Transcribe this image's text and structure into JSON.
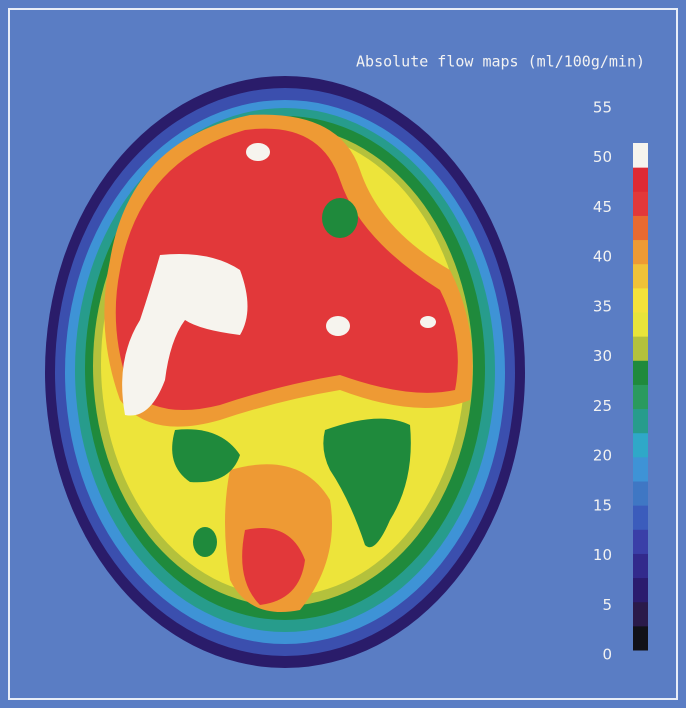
{
  "title": "Absolute flow maps (ml/100g/min)",
  "colorbar": {
    "ticks": [
      0,
      5,
      10,
      15,
      20,
      25,
      30,
      35,
      40,
      45,
      50,
      55
    ],
    "colors": [
      "#111118",
      "#2a1a4a",
      "#2b1c6e",
      "#322a8c",
      "#3a3fa8",
      "#3b5cbc",
      "#3f77c4",
      "#3e93d6",
      "#2fa8c8",
      "#279c8c",
      "#2a9a5e",
      "#1f8a3c",
      "#b4c13c",
      "#e8e43a",
      "#f4e23a",
      "#f0c238",
      "#ee9a34",
      "#e86a30",
      "#e2383a",
      "#de2a34",
      "#f6f4ee"
    ]
  }
}
